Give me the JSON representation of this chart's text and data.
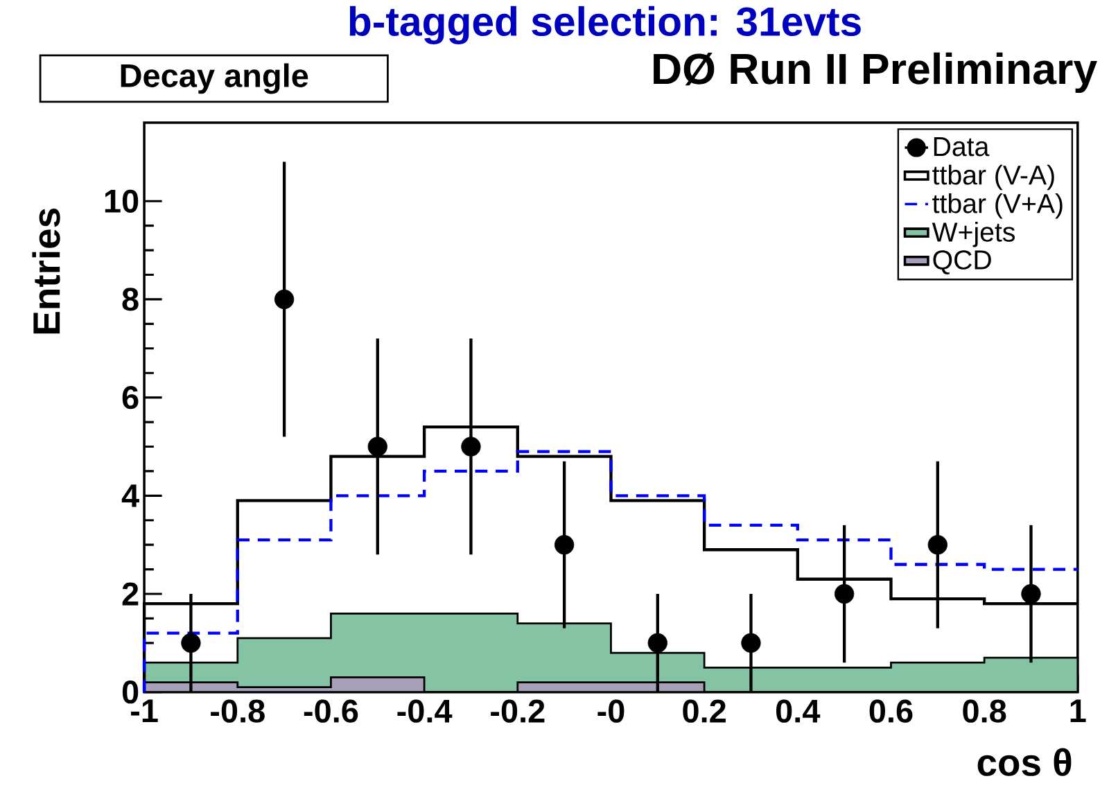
{
  "chart_data": {
    "type": "histogram",
    "title": "b-tagged selection: 31evts",
    "annotations": [
      "Decay angle",
      "DØ Run II Preliminary"
    ],
    "xlabel": "cos θ",
    "ylabel": "Entries",
    "bins": [
      -1,
      -0.8,
      -0.6,
      -0.4,
      -0.2,
      0,
      0.2,
      0.4,
      0.6,
      0.8,
      1
    ],
    "series": [
      {
        "name": "Data",
        "type": "scatter",
        "color": "#000000",
        "x": [
          -0.9,
          -0.7,
          -0.5,
          -0.3,
          -0.1,
          0.1,
          0.3,
          0.5,
          0.7,
          0.9
        ],
        "values": [
          1,
          8,
          5,
          5,
          3,
          1,
          1,
          2,
          3,
          2
        ],
        "errors": [
          1,
          2.8,
          2.2,
          2.2,
          1.7,
          1,
          1,
          1.4,
          1.7,
          1.4
        ],
        "marker": "circle"
      },
      {
        "name": "ttbar (V-A)",
        "color": "#000000",
        "line_style": "solid",
        "values": [
          1.8,
          3.9,
          4.8,
          5.4,
          4.8,
          3.9,
          2.9,
          2.3,
          1.9,
          1.8
        ]
      },
      {
        "name": "ttbar (V+A)",
        "color": "#0000ff",
        "line_style": "dashed",
        "values": [
          1.2,
          3.1,
          4.0,
          4.5,
          4.9,
          4.0,
          3.4,
          3.1,
          2.6,
          2.5
        ]
      },
      {
        "name": "W+jets",
        "color": "#84c4a4",
        "values": [
          0.6,
          1.1,
          1.6,
          1.6,
          1.4,
          0.8,
          0.5,
          0.5,
          0.6,
          0.7
        ]
      },
      {
        "name": "QCD",
        "color": "#a8a0b8",
        "values": [
          0.2,
          0.1,
          0.3,
          0,
          0.2,
          0.2,
          0,
          0,
          0,
          0
        ]
      }
    ],
    "xlim": [
      -1,
      1
    ],
    "ylim": [
      0,
      11.6
    ],
    "xticks": [
      -1,
      -0.8,
      -0.6,
      -0.4,
      -0.2,
      {
        "value": 0,
        "label": "-0"
      },
      0.2,
      0.4,
      0.6,
      0.8,
      1
    ],
    "yticks": [
      0,
      2,
      4,
      6,
      8,
      10
    ],
    "grid": false,
    "legend": "top right"
  }
}
